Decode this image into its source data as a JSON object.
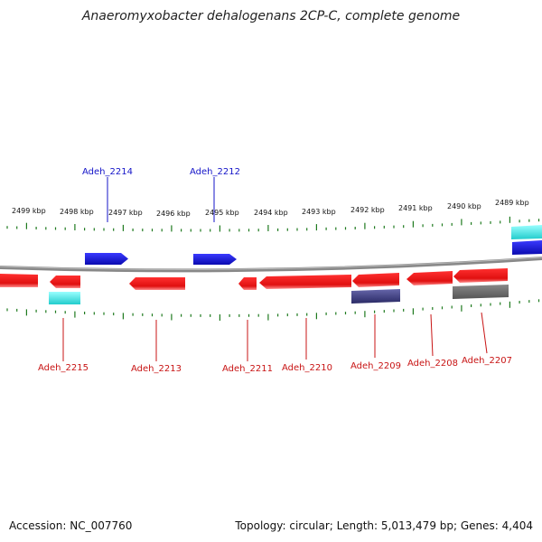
{
  "title": "Anaeromyxobacter dehalogenans 2CP-C, complete genome",
  "footer": {
    "accession": "Accession: NC_007760",
    "info": "Topology: circular; Length: 5,013,479 bp; Genes: 4,404"
  },
  "colors": {
    "forward_gene": "#1a1adc",
    "reverse_gene": "#e8141e",
    "rna_cyan": "#33dddd",
    "purple_gene": "#4a4a8c",
    "gray_gene": "#6a6a6a",
    "tick_green": "#1e7a1e",
    "backbone": "#888888",
    "label_blue": "#1414c8",
    "label_red": "#c81414"
  },
  "scale": {
    "unit": "kbp",
    "ticks": [
      {
        "label": "2499 kbp"
      },
      {
        "label": "2498 kbp"
      },
      {
        "label": "2497 kbp"
      },
      {
        "label": "2496 kbp"
      },
      {
        "label": "2495 kbp"
      },
      {
        "label": "2494 kbp"
      },
      {
        "label": "2493 kbp"
      },
      {
        "label": "2492 kbp"
      },
      {
        "label": "2491 kbp"
      },
      {
        "label": "2490 kbp"
      },
      {
        "label": "2489 kbp"
      }
    ]
  },
  "genes": [
    {
      "name": "Adeh_2214",
      "strand": "+",
      "color": "forward"
    },
    {
      "name": "Adeh_2212",
      "strand": "+",
      "color": "forward"
    },
    {
      "name": "Adeh_2215",
      "strand": "-",
      "color": "reverse"
    },
    {
      "name": "Adeh_2213",
      "strand": "-",
      "color": "reverse"
    },
    {
      "name": "Adeh_2211",
      "strand": "-",
      "color": "reverse"
    },
    {
      "name": "Adeh_2210",
      "strand": "-",
      "color": "reverse"
    },
    {
      "name": "Adeh_2209",
      "strand": "-",
      "color": "reverse"
    },
    {
      "name": "Adeh_2208",
      "strand": "-",
      "color": "reverse"
    },
    {
      "name": "Adeh_2207",
      "strand": "-",
      "color": "reverse"
    }
  ]
}
